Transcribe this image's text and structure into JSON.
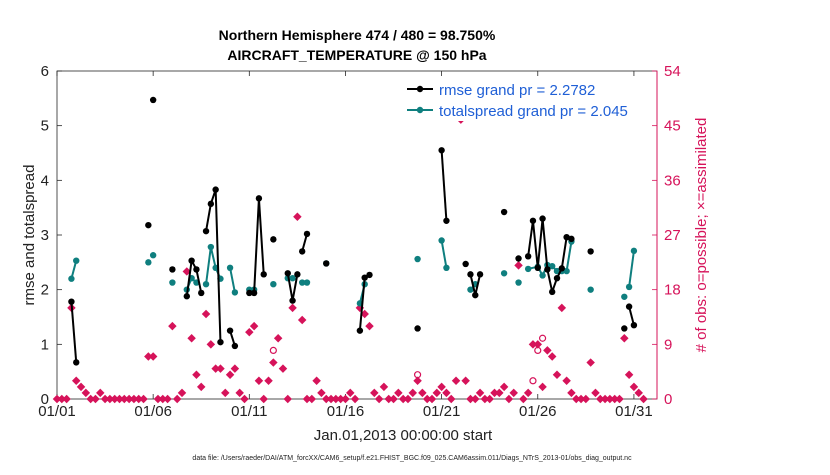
{
  "chart_data": {
    "type": "line",
    "title_line1": "Northern Hemisphere 474 / 480 = 98.750%",
    "title_line2": "AIRCRAFT_TEMPERATURE @ 150 hPa",
    "xlabel": "Jan.01,2013 00:00:00 start",
    "ylabel_left": "rmse and totalspread",
    "ylabel_right": "# of obs: o=possible; ×=assimilated",
    "footer": "data file: /Users/raeder/DAI/ATM_forcXX/CAM6_setup/f.e21.FHIST_BGC.f09_025.CAM6assim.011/Diags_NTrS_2013-01/obs_diag_output.nc",
    "xlim": [
      1,
      32.2
    ],
    "ylim_left": [
      0,
      6
    ],
    "ylim_right": [
      0,
      54
    ],
    "x_ticks": [
      1,
      6,
      11,
      16,
      21,
      26,
      31
    ],
    "x_tick_labels": [
      "01/01",
      "01/06",
      "01/11",
      "01/16",
      "01/21",
      "01/26",
      "01/31"
    ],
    "y_ticks_left": [
      0,
      1,
      2,
      3,
      4,
      5,
      6
    ],
    "y_ticks_right": [
      0,
      9,
      18,
      27,
      36,
      45,
      54
    ],
    "colors": {
      "rmse": "#000000",
      "spread": "#0f7f7f",
      "obs": "#d6135a",
      "legend_text": "#1f5fd6"
    },
    "legend": [
      {
        "name": "rmse grand pr = 2.2782",
        "color": "#000000"
      },
      {
        "name": "totalspread grand pr = 2.045",
        "color": "#0f7f7f"
      }
    ],
    "series": [
      {
        "name": "rmse",
        "segments": [
          [
            [
              1.75,
              1.78
            ],
            [
              2.0,
              0.67
            ]
          ],
          [
            [
              5.75,
              3.18
            ]
          ],
          [
            [
              6.0,
              5.47
            ]
          ],
          [
            [
              7.0,
              2.37
            ]
          ],
          [
            [
              7.75,
              1.88
            ],
            [
              8.0,
              2.53
            ],
            [
              8.25,
              2.37
            ],
            [
              8.5,
              1.94
            ]
          ],
          [
            [
              8.75,
              3.07
            ],
            [
              9.0,
              3.57
            ],
            [
              9.25,
              3.83
            ],
            [
              9.5,
              1.04
            ]
          ],
          [
            [
              10.0,
              1.25
            ],
            [
              10.25,
              0.97
            ]
          ],
          [
            [
              11.0,
              1.94
            ],
            [
              11.25,
              1.94
            ],
            [
              11.5,
              3.67
            ],
            [
              11.75,
              2.28
            ]
          ],
          [
            [
              12.25,
              2.92
            ]
          ],
          [
            [
              13.0,
              2.3
            ],
            [
              13.25,
              1.8
            ],
            [
              13.5,
              2.28
            ]
          ],
          [
            [
              13.75,
              2.7
            ],
            [
              14.0,
              3.02
            ]
          ],
          [
            [
              15.0,
              2.48
            ]
          ],
          [
            [
              16.75,
              1.25
            ],
            [
              17.0,
              2.22
            ]
          ],
          [
            [
              17.25,
              2.27
            ]
          ],
          [
            [
              19.75,
              1.29
            ]
          ],
          [
            [
              21.0,
              4.55
            ],
            [
              21.25,
              3.26
            ]
          ],
          [
            [
              22.25,
              2.47
            ]
          ],
          [
            [
              22.5,
              2.28
            ],
            [
              22.75,
              1.9
            ],
            [
              23.0,
              2.28
            ]
          ],
          [
            [
              24.25,
              3.42
            ]
          ],
          [
            [
              25.0,
              2.57
            ]
          ],
          [
            [
              25.5,
              2.61
            ],
            [
              25.75,
              3.26
            ],
            [
              26.0,
              2.4
            ],
            [
              26.25,
              3.3
            ],
            [
              26.5,
              2.37
            ],
            [
              26.75,
              1.96
            ],
            [
              27.0,
              2.21
            ],
            [
              27.25,
              2.39
            ],
            [
              27.5,
              2.96
            ],
            [
              27.75,
              2.93
            ]
          ],
          [
            [
              28.75,
              2.7
            ]
          ],
          [
            [
              30.5,
              1.29
            ]
          ],
          [
            [
              30.75,
              1.69
            ],
            [
              31.0,
              1.35
            ]
          ]
        ]
      },
      {
        "name": "totalspread",
        "segments": [
          [
            [
              1.75,
              2.2
            ],
            [
              2.0,
              2.53
            ]
          ],
          [
            [
              5.75,
              2.5
            ]
          ],
          [
            [
              6.0,
              2.63
            ]
          ],
          [
            [
              7.0,
              2.13
            ]
          ],
          [
            [
              7.75,
              2.0
            ],
            [
              8.0,
              2.21
            ],
            [
              8.25,
              2.13
            ]
          ],
          [
            [
              8.75,
              2.1
            ],
            [
              9.0,
              2.78
            ],
            [
              9.25,
              2.4
            ],
            [
              9.5,
              2.2
            ]
          ],
          [
            [
              10.0,
              2.4
            ],
            [
              10.25,
              1.95
            ]
          ],
          [
            [
              11.0,
              2.0
            ],
            [
              11.25,
              2.0
            ]
          ],
          [
            [
              12.25,
              2.1
            ]
          ],
          [
            [
              13.0,
              2.21
            ],
            [
              13.25,
              2.21
            ]
          ],
          [
            [
              13.75,
              2.13
            ],
            [
              14.0,
              2.13
            ]
          ],
          [
            [
              15.0,
              2.48
            ]
          ],
          [
            [
              16.75,
              1.75
            ],
            [
              17.0,
              2.1
            ]
          ],
          [
            [
              19.75,
              2.56
            ]
          ],
          [
            [
              21.0,
              2.9
            ],
            [
              21.25,
              2.4
            ]
          ],
          [
            [
              22.5,
              2.0
            ],
            [
              22.75,
              2.1
            ]
          ],
          [
            [
              24.25,
              2.3
            ]
          ],
          [
            [
              25.0,
              2.13
            ]
          ],
          [
            [
              25.5,
              2.38
            ],
            [
              26.0,
              2.42
            ],
            [
              26.25,
              2.26
            ],
            [
              26.5,
              2.45
            ],
            [
              26.75,
              2.43
            ],
            [
              27.0,
              2.34
            ],
            [
              27.25,
              2.34
            ],
            [
              27.5,
              2.34
            ],
            [
              27.75,
              2.88
            ]
          ],
          [
            [
              28.75,
              2.0
            ]
          ],
          [
            [
              30.5,
              1.87
            ]
          ],
          [
            [
              30.75,
              2.05
            ],
            [
              31.0,
              2.71
            ]
          ]
        ]
      }
    ],
    "obs_assimilated": [
      [
        1,
        0
      ],
      [
        1.25,
        0
      ],
      [
        1.5,
        0
      ],
      [
        1.75,
        15
      ],
      [
        2.0,
        3
      ],
      [
        2.25,
        2
      ],
      [
        2.5,
        1
      ],
      [
        2.75,
        0
      ],
      [
        3.0,
        0
      ],
      [
        3.25,
        1
      ],
      [
        3.5,
        0
      ],
      [
        3.75,
        0
      ],
      [
        4.0,
        0
      ],
      [
        4.25,
        0
      ],
      [
        4.5,
        0
      ],
      [
        4.75,
        0
      ],
      [
        5.0,
        0
      ],
      [
        5.25,
        0
      ],
      [
        5.5,
        0
      ],
      [
        5.75,
        7
      ],
      [
        6.0,
        7
      ],
      [
        6.25,
        0
      ],
      [
        6.5,
        0
      ],
      [
        6.75,
        0
      ],
      [
        7.0,
        12
      ],
      [
        7.25,
        0
      ],
      [
        7.5,
        1
      ],
      [
        7.75,
        21
      ],
      [
        8.0,
        10
      ],
      [
        8.25,
        4
      ],
      [
        8.5,
        2
      ],
      [
        8.75,
        14
      ],
      [
        9.0,
        9
      ],
      [
        9.25,
        5
      ],
      [
        9.5,
        5
      ],
      [
        9.75,
        1
      ],
      [
        10.0,
        4
      ],
      [
        10.25,
        5
      ],
      [
        10.5,
        1
      ],
      [
        10.75,
        0
      ],
      [
        11.0,
        11
      ],
      [
        11.25,
        12
      ],
      [
        11.5,
        3
      ],
      [
        11.75,
        0
      ],
      [
        12.0,
        3
      ],
      [
        12.25,
        6
      ],
      [
        12.5,
        10
      ],
      [
        12.75,
        5
      ],
      [
        13.0,
        0
      ],
      [
        13.25,
        15
      ],
      [
        13.5,
        30
      ],
      [
        13.75,
        13
      ],
      [
        14.0,
        0
      ],
      [
        14.25,
        0
      ],
      [
        14.5,
        3
      ],
      [
        14.75,
        1
      ],
      [
        15.0,
        0
      ],
      [
        15.25,
        0
      ],
      [
        15.5,
        0
      ],
      [
        15.75,
        0
      ],
      [
        16.0,
        0
      ],
      [
        16.25,
        1
      ],
      [
        16.5,
        0
      ],
      [
        16.75,
        15
      ],
      [
        17.0,
        14
      ],
      [
        17.25,
        12
      ],
      [
        17.5,
        1
      ],
      [
        17.75,
        0
      ],
      [
        18.0,
        2
      ],
      [
        18.25,
        0
      ],
      [
        18.5,
        0
      ],
      [
        18.75,
        1
      ],
      [
        19.0,
        0
      ],
      [
        19.25,
        0
      ],
      [
        19.5,
        1
      ],
      [
        19.75,
        3
      ],
      [
        20.0,
        1
      ],
      [
        20.25,
        0
      ],
      [
        20.5,
        0
      ],
      [
        20.75,
        1
      ],
      [
        21.0,
        2
      ],
      [
        21.25,
        1
      ],
      [
        21.5,
        0
      ],
      [
        21.75,
        3
      ],
      [
        22.0,
        46
      ],
      [
        22.25,
        3
      ],
      [
        22.5,
        0
      ],
      [
        22.75,
        0
      ],
      [
        23.0,
        1
      ],
      [
        23.25,
        0
      ],
      [
        23.5,
        0
      ],
      [
        23.75,
        1
      ],
      [
        24.0,
        1
      ],
      [
        24.25,
        2
      ],
      [
        24.5,
        0
      ],
      [
        24.75,
        1
      ],
      [
        25.0,
        22
      ],
      [
        25.25,
        0
      ],
      [
        25.5,
        1
      ],
      [
        25.75,
        9
      ],
      [
        26.0,
        9
      ],
      [
        26.25,
        2
      ],
      [
        26.5,
        8
      ],
      [
        26.75,
        7
      ],
      [
        27.0,
        4
      ],
      [
        27.25,
        15
      ],
      [
        27.5,
        3
      ],
      [
        27.75,
        1
      ],
      [
        28.0,
        0
      ],
      [
        28.25,
        0
      ],
      [
        28.5,
        0
      ],
      [
        28.75,
        6
      ],
      [
        29.0,
        1
      ],
      [
        29.25,
        0
      ],
      [
        29.5,
        0
      ],
      [
        29.75,
        0
      ],
      [
        30.0,
        0
      ],
      [
        30.25,
        0
      ],
      [
        30.5,
        10
      ],
      [
        30.75,
        4
      ],
      [
        31.0,
        2
      ],
      [
        31.25,
        1
      ],
      [
        31.5,
        0
      ]
    ],
    "obs_possible": [
      [
        12.25,
        8
      ],
      [
        19.75,
        4
      ],
      [
        22.0,
        48
      ],
      [
        25.75,
        3
      ],
      [
        26.0,
        8
      ],
      [
        26.25,
        10
      ]
    ]
  }
}
